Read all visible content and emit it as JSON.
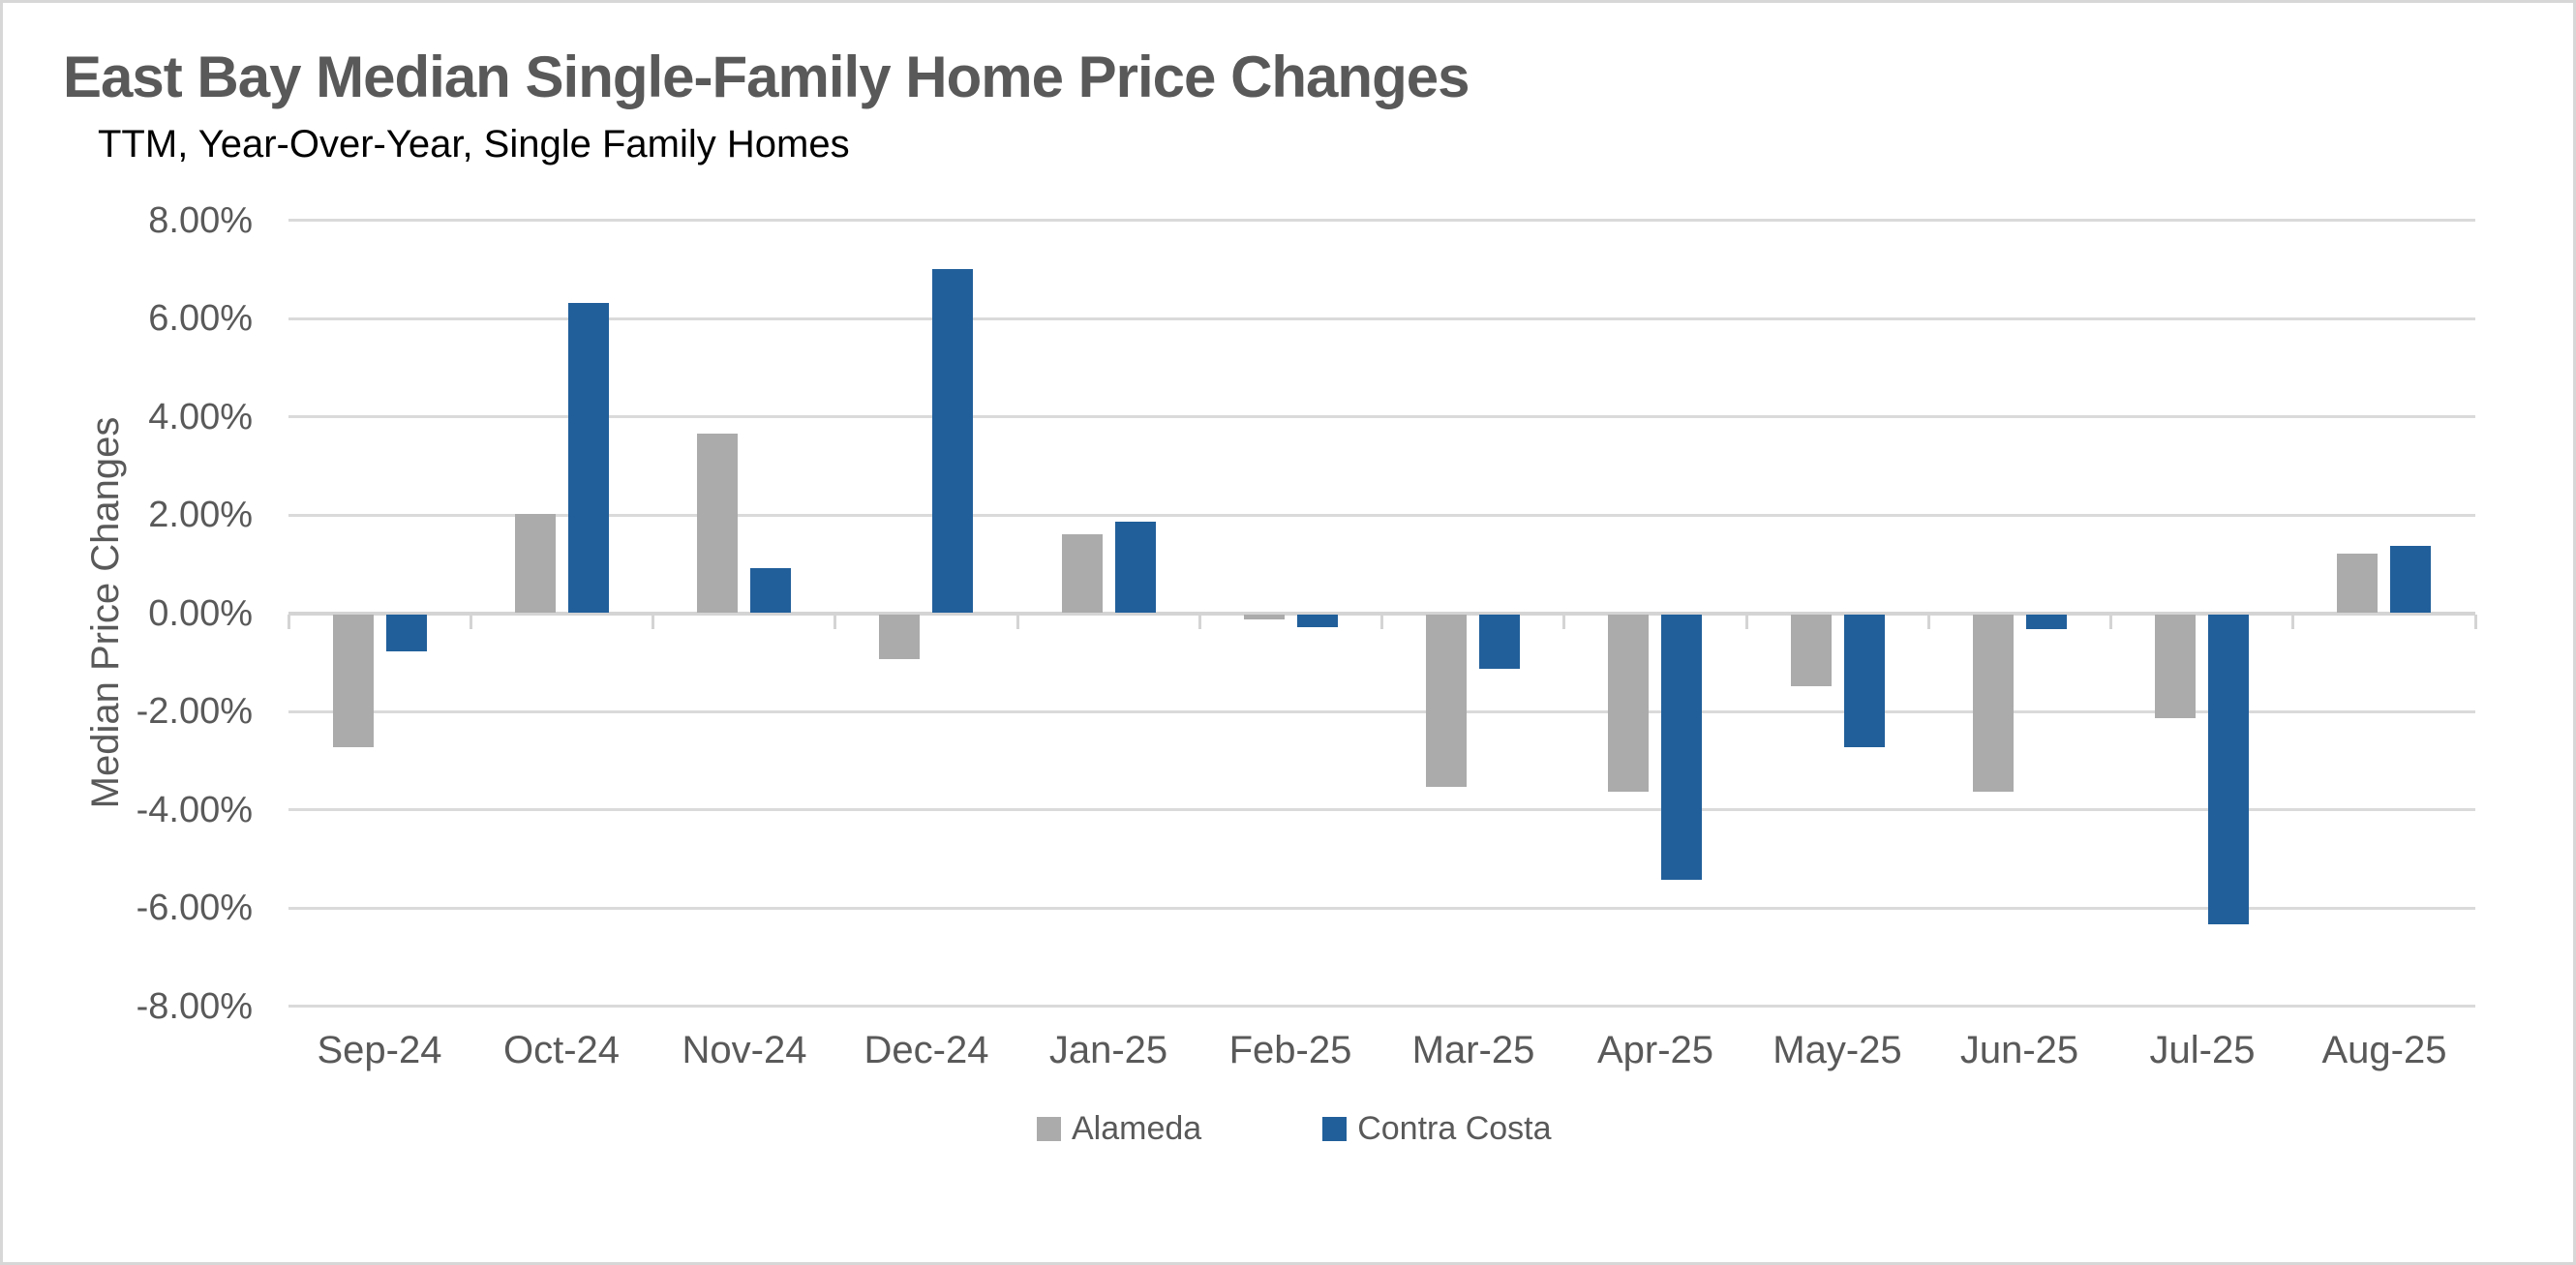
{
  "header": {
    "title": "East Bay Median Single-Family Home Price Changes",
    "subtitle": "TTM, Year-Over-Year, Single Family Homes"
  },
  "chart_data": {
    "type": "bar",
    "title": "East Bay Median Single-Family Home Price Changes",
    "subtitle": "TTM, Year-Over-Year, Single Family Homes",
    "ylabel": "Median Price Changes",
    "categories": [
      "Sep-24",
      "Oct-24",
      "Nov-24",
      "Dec-24",
      "Jan-25",
      "Feb-25",
      "Mar-25",
      "Apr-25",
      "May-25",
      "Jun-25",
      "Jul-25",
      "Aug-25"
    ],
    "series": [
      {
        "name": "Alameda",
        "color": "#ABABAB",
        "values": [
          -2.7,
          2.0,
          3.65,
          -0.9,
          1.6,
          -0.1,
          -3.5,
          -3.6,
          -1.45,
          -3.6,
          -2.1,
          1.2
        ]
      },
      {
        "name": "Contra Costa",
        "color": "#215F9A",
        "values": [
          -0.75,
          6.3,
          0.9,
          7.0,
          1.85,
          -0.25,
          -1.1,
          -5.4,
          -2.7,
          -0.3,
          -6.3,
          1.35
        ]
      }
    ],
    "ylim": [
      -8,
      8
    ],
    "ytick_step": 2,
    "ytick_decimals": 2,
    "ytick_suffix": "%",
    "ytick_labels": [
      "8.00%",
      "6.00%",
      "4.00%",
      "2.00%",
      "0.00%",
      "-2.00%",
      "-4.00%",
      "-6.00%",
      "-8.00%"
    ],
    "grid": true,
    "legend_position": "bottom-center"
  },
  "colors": {
    "title_text": "#595959",
    "subtitle_text": "#000000",
    "axis_text": "#595959",
    "gridline": "#DADADA",
    "axis_line": "#D4D4D4",
    "alameda_bar": "#ABABAB",
    "contra_costa_bar": "#215F9A",
    "canvas_border": "#D7D7D7",
    "background": "#FFFFFF"
  }
}
